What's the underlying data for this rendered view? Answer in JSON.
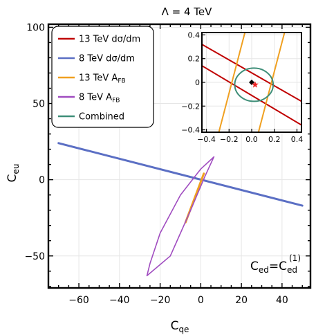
{
  "chart_data": {
    "type": "line",
    "title": "Λ = 4 TeV",
    "xlabel": "C",
    "xlabel_sub": "qe",
    "ylabel": "C",
    "ylabel_sub": "eu",
    "xlim": [
      -75,
      54
    ],
    "ylim": [
      -71,
      102
    ],
    "xticks": [
      -60,
      -40,
      -20,
      0,
      20,
      40
    ],
    "yticks": [
      -50,
      0,
      50,
      100
    ],
    "grid": true,
    "legend_position": "top-left",
    "annotation": {
      "text": "C",
      "sub": "ed",
      "equals": "=",
      "rhs": "C",
      "rhs_sub": "ed",
      "rhs_sup": "(1)",
      "position": "bottom-right"
    },
    "series": [
      {
        "name": "13 TeV dσ/dm",
        "color": "#c00000",
        "kind": "band"
      },
      {
        "name": "8 TeV dσ/dm",
        "color": "#5b6fc4",
        "kind": "band",
        "x": [
          -70,
          50
        ],
        "y": [
          24,
          -17
        ]
      },
      {
        "name": "13 TeV A",
        "sub": "FB",
        "color": "#f0a020",
        "kind": "band",
        "x": [
          -7.5,
          1.5
        ],
        "y": [
          -28,
          4
        ]
      },
      {
        "name": "8 TeV A",
        "sub": "FB",
        "color": "#a04cc0",
        "kind": "ellipse",
        "x": [
          6.5,
          2,
          -5,
          -15,
          -26.5,
          -25,
          -20,
          -10,
          0,
          6.5
        ],
        "y": [
          15,
          2,
          -20,
          -50,
          -63,
          -55,
          -35,
          -10,
          7,
          15
        ]
      },
      {
        "name": "Combined",
        "color": "#3e8e78",
        "kind": "ellipse"
      }
    ],
    "inset": {
      "xlim": [
        -0.44,
        0.44
      ],
      "ylim": [
        -0.42,
        0.42
      ],
      "xticks": [
        -0.4,
        -0.2,
        0,
        0.2,
        0.4
      ],
      "yticks": [
        -0.4,
        -0.2,
        0,
        0.2,
        0.4
      ],
      "tick_labels_x": [
        "-0.4",
        "-0.2",
        "0.0",
        "0.2",
        "0.4"
      ],
      "tick_labels_y": [
        "-0.4",
        "-0.2",
        "0",
        "0.2",
        "0.4"
      ],
      "red_lines": [
        {
          "x": [
            -0.44,
            0.44
          ],
          "y": [
            0.32,
            -0.16
          ]
        },
        {
          "x": [
            -0.44,
            0.44
          ],
          "y": [
            0.14,
            -0.36
          ]
        }
      ],
      "orange_lines": [
        {
          "x": [
            -0.29,
            -0.06
          ],
          "y": [
            -0.42,
            0.42
          ]
        },
        {
          "x": [
            0.06,
            0.29
          ],
          "y": [
            -0.42,
            0.42
          ]
        }
      ],
      "green_ellipse": {
        "cx": 0.02,
        "cy": -0.02,
        "rx": 0.17,
        "ry": 0.14
      },
      "markers": [
        {
          "shape": "diamond",
          "x": 0.0,
          "y": 0.0,
          "color": "#000000"
        },
        {
          "shape": "star",
          "x": 0.03,
          "y": -0.02,
          "color": "#ee2222"
        }
      ]
    }
  }
}
